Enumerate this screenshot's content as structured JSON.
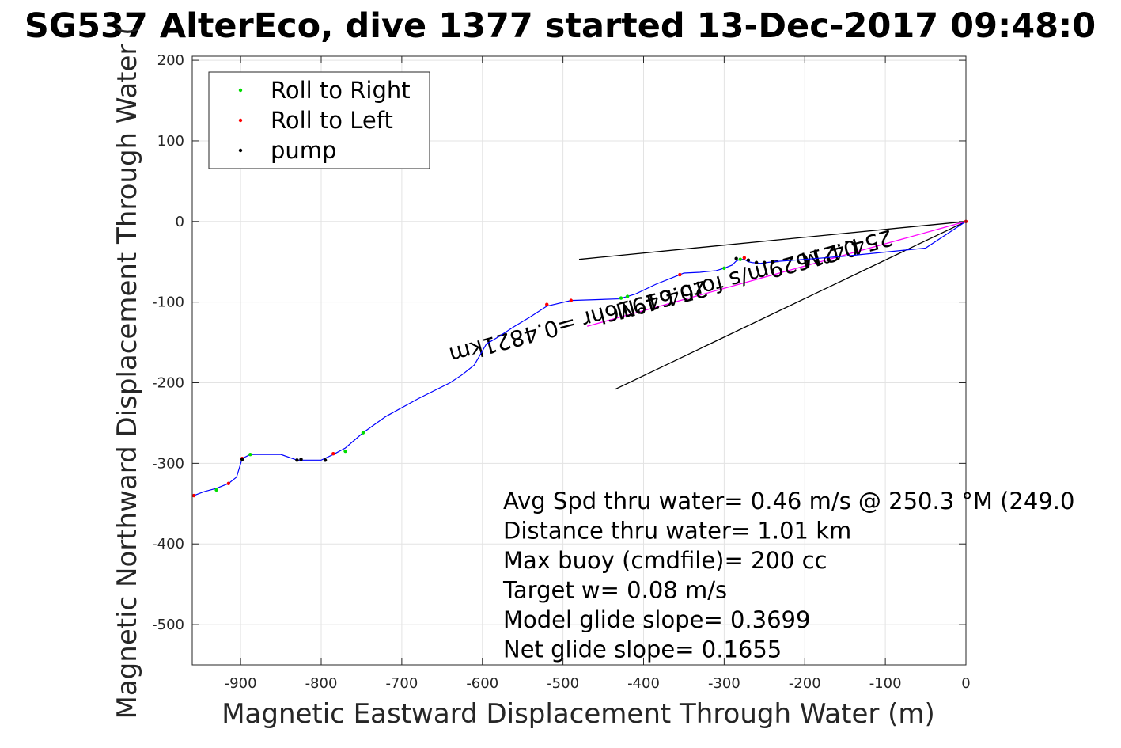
{
  "chart_data": {
    "type": "line",
    "title": "SG537 AlterEco, dive 1377 started 13-Dec-2017 09:48:0",
    "xlabel": "Magnetic Eastward Displacement Through Water (m)",
    "ylabel": "Magnetic Northward Displacement Through Water (",
    "xlim": [
      -960,
      0
    ],
    "ylim": [
      -550,
      205
    ],
    "xticks": [
      -900,
      -800,
      -700,
      -600,
      -500,
      -400,
      -300,
      -200,
      -100,
      0
    ],
    "yticks": [
      200,
      100,
      0,
      -100,
      -200,
      -300,
      -400,
      -500
    ],
    "grid": true,
    "legend_position": "top-left",
    "legend": [
      {
        "name": "Roll to Right",
        "color": "#00dd00"
      },
      {
        "name": "Roll to Left",
        "color": "#ff0000"
      },
      {
        "name": "pump",
        "color": "#000000"
      }
    ],
    "track": {
      "color": "#0000ff",
      "x": [
        0,
        -50,
        -100,
        -150,
        -200,
        -240,
        -255,
        -265,
        -270,
        -275,
        -280,
        -285,
        -290,
        -300,
        -310,
        -330,
        -350,
        -355,
        -360,
        -385,
        -410,
        -430,
        -460,
        -490,
        -520,
        -540,
        -560,
        -580,
        -595,
        -610,
        -625,
        -640,
        -680,
        -720,
        -748,
        -770,
        -785,
        -800,
        -815,
        -830,
        -850,
        -870,
        -888,
        -898,
        -905,
        -915,
        -930,
        -945,
        -958
      ],
      "y": [
        0,
        -33,
        -38,
        -43,
        -47,
        -50,
        -52,
        -51,
        -50,
        -47,
        -47,
        -49,
        -54,
        -58,
        -61,
        -63,
        -64,
        -66,
        -68,
        -78,
        -90,
        -96,
        -97,
        -98,
        -105,
        -118,
        -130,
        -143,
        -152,
        -178,
        -190,
        -200,
        -220,
        -242,
        -262,
        -281,
        -289,
        -296,
        -296,
        -296,
        -289,
        -289,
        -289,
        -294,
        -317,
        -325,
        -331,
        -335,
        -340
      ]
    },
    "segments": [
      {
        "name": "Roll to Right",
        "color": "#00dd00",
        "points": [
          [
            -280,
            -47
          ],
          [
            -300,
            -58
          ],
          [
            -420,
            -93
          ],
          [
            -428,
            -95
          ],
          [
            -770,
            -285
          ],
          [
            -748,
            -262
          ],
          [
            -888,
            -289
          ],
          [
            -930,
            -333
          ]
        ]
      },
      {
        "name": "Roll to Left",
        "color": "#ff0000",
        "points": [
          [
            -275,
            -45
          ],
          [
            -355,
            -66
          ],
          [
            -520,
            -103
          ],
          [
            -490,
            -98
          ],
          [
            -785,
            -288
          ],
          [
            -898,
            -294
          ],
          [
            -915,
            -325
          ],
          [
            -958,
            -340
          ],
          [
            0,
            0
          ]
        ]
      },
      {
        "name": "pump",
        "color": "#000000",
        "points": [
          [
            -240,
            -50
          ],
          [
            -250,
            -51
          ],
          [
            -260,
            -51
          ],
          [
            -270,
            -48
          ],
          [
            -285,
            -46
          ],
          [
            -830,
            -296
          ],
          [
            -825,
            -295
          ],
          [
            -795,
            -296
          ],
          [
            -898,
            -295
          ]
        ]
      }
    ],
    "reference_lines": [
      {
        "name": "heading-line",
        "color": "#000000",
        "x": [
          0,
          -480
        ],
        "y": [
          0,
          -47
        ]
      },
      {
        "name": "heading-line",
        "color": "#000000",
        "x": [
          0,
          -435
        ],
        "y": [
          0,
          -208
        ]
      },
      {
        "name": "current-vector",
        "color": "#ff00ff",
        "x": [
          0,
          -470
        ],
        "y": [
          0,
          -130
        ]
      }
    ],
    "annotations": [
      {
        "text": "254.4°M",
        "x": -150,
        "y": -25,
        "rotation": 165
      },
      {
        "text": "0.21629m/s for0.61916hr =0.4821km",
        "x": -390,
        "y": -90,
        "rotation": 165
      },
      {
        "text": "254.4°M",
        "x": -380,
        "y": -88,
        "rotation": 165
      }
    ],
    "info_lines": [
      "Avg Spd thru water=  0.46 m/s @ 250.3 °M (249.0",
      "Distance thru water=  1.01 km",
      "Max buoy (cmdfile)= 200 cc",
      "Target w= 0.08 m/s",
      "Model glide slope= 0.3699",
      "Net glide slope= 0.1655"
    ]
  }
}
